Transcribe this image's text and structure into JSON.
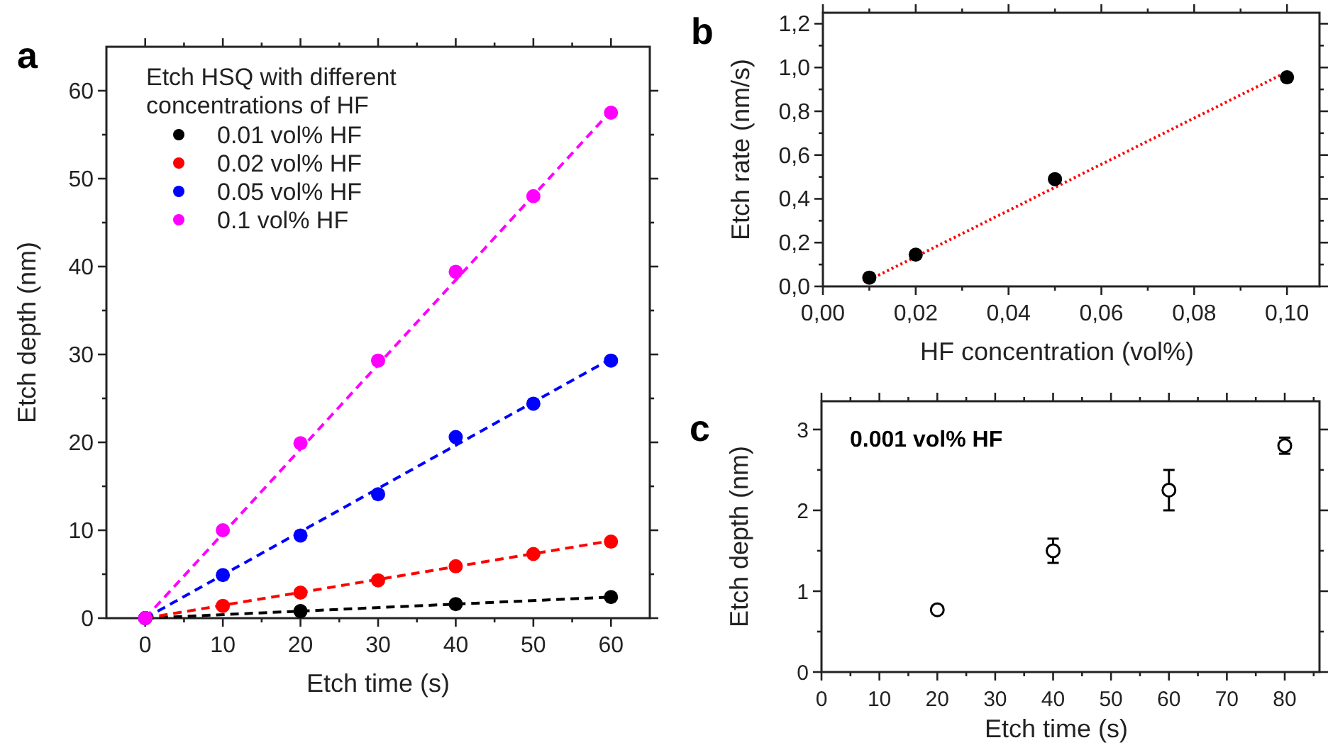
{
  "chart_data": [
    {
      "type": "scatter",
      "title": "a",
      "xlabel": "Etch time (s)",
      "ylabel": "Etch depth (nm)",
      "legend_title": "Etch HSQ with different concentrations of HF",
      "legend": "top left",
      "marker": "circle",
      "xlim": [
        -5,
        65
      ],
      "ylim": [
        0,
        65
      ],
      "xticks": [
        0,
        {
          "value": 5,
          "label": null
        },
        10,
        {
          "value": 15,
          "label": null
        },
        20,
        {
          "value": 25,
          "label": null
        },
        30,
        {
          "value": 35,
          "label": null
        },
        40,
        {
          "value": 45,
          "label": null
        },
        50,
        {
          "value": 55,
          "label": null
        },
        60
      ],
      "yticks": [
        0,
        {
          "value": 5,
          "label": null
        },
        10,
        {
          "value": 15,
          "label": null
        },
        20,
        {
          "value": 25,
          "label": null
        },
        30,
        {
          "value": 35,
          "label": null
        },
        40,
        {
          "value": 45,
          "label": null
        },
        50,
        {
          "value": 55,
          "label": null
        },
        60
      ],
      "series": [
        {
          "type": "line",
          "marker": "none",
          "line_style": "dashed",
          "color": "#000000",
          "x": [
            0,
            60
          ],
          "values": [
            0,
            2.4
          ]
        },
        {
          "type": "line",
          "marker": "none",
          "line_style": "dashed",
          "color": "#ff0000",
          "x": [
            0,
            60
          ],
          "values": [
            0,
            8.8
          ]
        },
        {
          "type": "line",
          "marker": "none",
          "line_style": "dashed",
          "color": "#0000ff",
          "x": [
            0,
            60
          ],
          "values": [
            0,
            29.5
          ]
        },
        {
          "type": "line",
          "marker": "none",
          "line_style": "dashed",
          "color": "#ff00ff",
          "x": [
            0,
            60
          ],
          "values": [
            0,
            57.7
          ]
        },
        {
          "name": "0.01 vol% HF",
          "color": "#000000",
          "x": [
            0,
            20,
            40,
            60
          ],
          "values": [
            0,
            0.8,
            1.6,
            2.4
          ]
        },
        {
          "name": "0.02 vol% HF",
          "color": "#ff0000",
          "x": [
            0,
            10,
            20,
            30,
            40,
            50,
            60
          ],
          "values": [
            0,
            1.4,
            2.9,
            4.3,
            5.9,
            7.3,
            8.7
          ]
        },
        {
          "name": "0.05 vol% HF",
          "color": "#0000ff",
          "x": [
            0,
            10,
            20,
            30,
            40,
            50,
            60
          ],
          "values": [
            0,
            4.9,
            9.4,
            14.1,
            20.6,
            24.4,
            29.3
          ]
        },
        {
          "name": "0.1 vol% HF",
          "color": "#ff00ff",
          "x": [
            0,
            10,
            20,
            30,
            40,
            50,
            60
          ],
          "values": [
            0,
            10,
            19.9,
            29.3,
            39.4,
            48,
            57.5
          ]
        }
      ]
    },
    {
      "type": "scatter",
      "title": "b",
      "xlabel": "HF concentration (vol%)",
      "ylabel": "Etch rate (nm/s)",
      "marker": "circle",
      "xlim": [
        0,
        0.107
      ],
      "ylim": [
        0,
        1.25
      ],
      "xticks": [
        {
          "value": 0,
          "label": "0,00"
        },
        {
          "value": 0.01,
          "label": null
        },
        {
          "value": 0.02,
          "label": "0,02"
        },
        {
          "value": 0.03,
          "label": null
        },
        {
          "value": 0.04,
          "label": "0,04"
        },
        {
          "value": 0.05,
          "label": null
        },
        {
          "value": 0.06,
          "label": "0,06"
        },
        {
          "value": 0.07,
          "label": null
        },
        {
          "value": 0.08,
          "label": "0,08"
        },
        {
          "value": 0.09,
          "label": null
        },
        {
          "value": 0.1,
          "label": "0,10"
        }
      ],
      "yticks": [
        {
          "value": 0,
          "label": "0,0"
        },
        {
          "value": 0.1,
          "label": null
        },
        {
          "value": 0.2,
          "label": "0,2"
        },
        {
          "value": 0.3,
          "label": null
        },
        {
          "value": 0.4,
          "label": "0,4"
        },
        {
          "value": 0.5,
          "label": null
        },
        {
          "value": 0.6,
          "label": "0,6"
        },
        {
          "value": 0.7,
          "label": null
        },
        {
          "value": 0.8,
          "label": "0,8"
        },
        {
          "value": 0.9,
          "label": null
        },
        {
          "value": 1,
          "label": "1,0"
        },
        {
          "value": 1.1,
          "label": null
        },
        {
          "value": 1.2,
          "label": "1,2"
        }
      ],
      "series": [
        {
          "type": "line",
          "marker": "none",
          "line_style": "dotted",
          "color": "#ff0000",
          "x": [
            0.01,
            0.1
          ],
          "values": [
            0.03,
            0.98
          ]
        },
        {
          "color": "#000000",
          "x": [
            0.01,
            0.02,
            0.05,
            0.1
          ],
          "values": [
            0.04,
            0.145,
            0.49,
            0.955
          ]
        }
      ]
    },
    {
      "type": "scatter",
      "title": "c",
      "xlabel": "Etch time (s)",
      "ylabel": "Etch depth (nm)",
      "marker": "circle",
      "annotations": [
        "0.001 vol% HF"
      ],
      "xlim": [
        0,
        86
      ],
      "ylim": [
        0,
        3.35
      ],
      "xticks": [
        0,
        {
          "value": 5,
          "label": null
        },
        10,
        {
          "value": 15,
          "label": null
        },
        20,
        {
          "value": 25,
          "label": null
        },
        30,
        {
          "value": 35,
          "label": null
        },
        40,
        {
          "value": 45,
          "label": null
        },
        50,
        {
          "value": 55,
          "label": null
        },
        60,
        {
          "value": 65,
          "label": null
        },
        70,
        {
          "value": 75,
          "label": null
        },
        80,
        {
          "value": 85,
          "label": null
        }
      ],
      "yticks": [
        0,
        {
          "value": 0.5,
          "label": null
        },
        1,
        {
          "value": 1.5,
          "label": null
        },
        2,
        {
          "value": 2.5,
          "label": null
        },
        3
      ],
      "series": [
        {
          "color": "#000000",
          "x": [
            20,
            40,
            60,
            80
          ],
          "values": [
            0.77,
            1.5,
            2.25,
            2.8
          ],
          "errors": [
            0.05,
            0.15,
            0.25,
            0.1
          ]
        }
      ]
    }
  ]
}
